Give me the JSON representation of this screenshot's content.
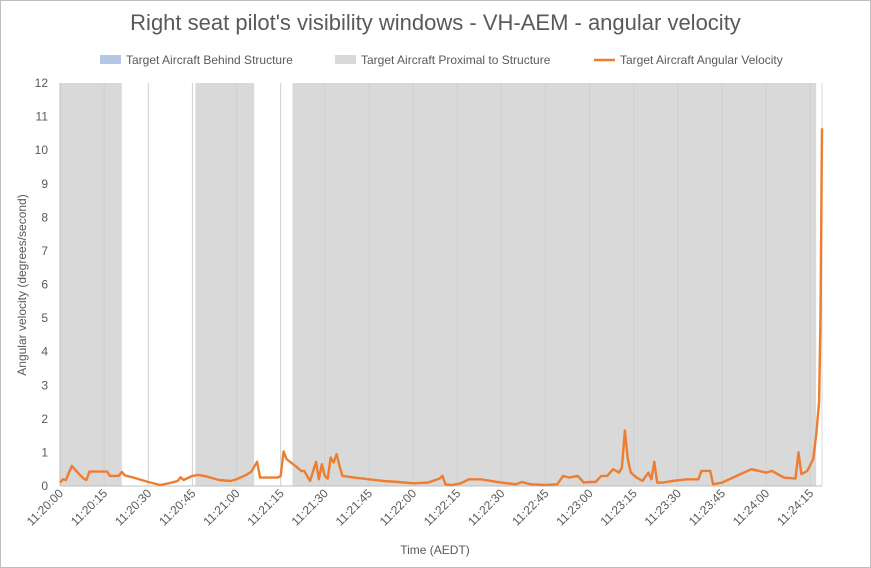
{
  "chart_data": {
    "type": "line",
    "title": "Right seat pilot's visibility windows - VH-AEM - angular velocity",
    "xlabel": "Time (AEDT)",
    "ylabel": "Angular velocity (degrees/second)",
    "ylim": [
      0,
      12
    ],
    "yticks": [
      "0",
      "1",
      "2",
      "3",
      "4",
      "5",
      "6",
      "7",
      "8",
      "9",
      "10",
      "11",
      "12"
    ],
    "xlim": [
      "11:20:00",
      "11:24:19"
    ],
    "xticks": [
      "11:20:00",
      "11:20:15",
      "11:20:30",
      "11:20:45",
      "11:21:00",
      "11:21:15",
      "11:21:30",
      "11:21:45",
      "11:22:00",
      "11:22:15",
      "11:22:30",
      "11:22:45",
      "11:23:00",
      "11:23:15",
      "11:23:30",
      "11:23:45",
      "11:24:00",
      "11:24:15"
    ],
    "grid": "vertical",
    "legend_position": "top",
    "legend": [
      {
        "label": "Target Aircraft Behind Structure",
        "kind": "area",
        "color": "#b4c7e7"
      },
      {
        "label": "Target Aircraft Proximal to Structure",
        "kind": "area",
        "color": "#d9d9d9"
      },
      {
        "label": "Target Aircraft Angular Velocity",
        "kind": "line",
        "color": "#ed7d31"
      }
    ],
    "proximal_intervals": [
      [
        "11:20:00",
        "11:20:21"
      ],
      [
        "11:20:46",
        "11:21:06"
      ],
      [
        "11:21:19",
        "11:24:17"
      ]
    ],
    "behind_intervals": [],
    "series": [
      {
        "name": "Target Aircraft Angular Velocity",
        "color": "#ed7d31",
        "points": [
          [
            "11:20:00",
            0.1
          ],
          [
            "11:20:01",
            0.2
          ],
          [
            "11:20:02",
            0.18
          ],
          [
            "11:20:04",
            0.6
          ],
          [
            "11:20:06",
            0.4
          ],
          [
            "11:20:08",
            0.22
          ],
          [
            "11:20:09",
            0.18
          ],
          [
            "11:20:10",
            0.43
          ],
          [
            "11:20:12",
            0.43
          ],
          [
            "11:20:16",
            0.43
          ],
          [
            "11:20:17",
            0.3
          ],
          [
            "11:20:20",
            0.3
          ],
          [
            "11:20:21",
            0.42
          ],
          [
            "11:20:22",
            0.32
          ],
          [
            "11:20:25",
            0.25
          ],
          [
            "11:20:30",
            0.12
          ],
          [
            "11:20:34",
            0.03
          ],
          [
            "11:20:37",
            0.08
          ],
          [
            "11:20:40",
            0.15
          ],
          [
            "11:20:41",
            0.26
          ],
          [
            "11:20:42",
            0.18
          ],
          [
            "11:20:45",
            0.3
          ],
          [
            "11:20:47",
            0.33
          ],
          [
            "11:20:50",
            0.28
          ],
          [
            "11:20:54",
            0.18
          ],
          [
            "11:20:58",
            0.15
          ],
          [
            "11:21:00",
            0.2
          ],
          [
            "11:21:03",
            0.32
          ],
          [
            "11:21:05",
            0.42
          ],
          [
            "11:21:07",
            0.72
          ],
          [
            "11:21:08",
            0.25
          ],
          [
            "11:21:14",
            0.25
          ],
          [
            "11:21:15",
            0.3
          ],
          [
            "11:21:16",
            1.03
          ],
          [
            "11:21:17",
            0.8
          ],
          [
            "11:21:20",
            0.6
          ],
          [
            "11:21:22",
            0.45
          ],
          [
            "11:21:23",
            0.45
          ],
          [
            "11:21:25",
            0.15
          ],
          [
            "11:21:27",
            0.72
          ],
          [
            "11:21:28",
            0.2
          ],
          [
            "11:21:29",
            0.65
          ],
          [
            "11:21:30",
            0.3
          ],
          [
            "11:21:31",
            0.22
          ],
          [
            "11:21:32",
            0.85
          ],
          [
            "11:21:33",
            0.7
          ],
          [
            "11:21:34",
            0.95
          ],
          [
            "11:21:35",
            0.6
          ],
          [
            "11:21:36",
            0.3
          ],
          [
            "11:21:40",
            0.25
          ],
          [
            "11:21:45",
            0.2
          ],
          [
            "11:21:50",
            0.15
          ],
          [
            "11:21:55",
            0.12
          ],
          [
            "11:22:00",
            0.08
          ],
          [
            "11:22:05",
            0.1
          ],
          [
            "11:22:09",
            0.22
          ],
          [
            "11:22:10",
            0.3
          ],
          [
            "11:22:11",
            0.05
          ],
          [
            "11:22:13",
            0.03
          ],
          [
            "11:22:16",
            0.07
          ],
          [
            "11:22:19",
            0.2
          ],
          [
            "11:22:23",
            0.2
          ],
          [
            "11:22:30",
            0.1
          ],
          [
            "11:22:35",
            0.05
          ],
          [
            "11:22:37",
            0.12
          ],
          [
            "11:22:40",
            0.05
          ],
          [
            "11:22:45",
            0.03
          ],
          [
            "11:22:49",
            0.05
          ],
          [
            "11:22:51",
            0.3
          ],
          [
            "11:22:53",
            0.25
          ],
          [
            "11:22:56",
            0.3
          ],
          [
            "11:22:58",
            0.1
          ],
          [
            "11:23:00",
            0.12
          ],
          [
            "11:23:02",
            0.12
          ],
          [
            "11:23:04",
            0.3
          ],
          [
            "11:23:06",
            0.3
          ],
          [
            "11:23:08",
            0.5
          ],
          [
            "11:23:10",
            0.4
          ],
          [
            "11:23:11",
            0.55
          ],
          [
            "11:23:12",
            1.65
          ],
          [
            "11:23:13",
            0.8
          ],
          [
            "11:23:14",
            0.4
          ],
          [
            "11:23:16",
            0.25
          ],
          [
            "11:23:18",
            0.15
          ],
          [
            "11:23:20",
            0.4
          ],
          [
            "11:23:21",
            0.2
          ],
          [
            "11:23:22",
            0.72
          ],
          [
            "11:23:23",
            0.1
          ],
          [
            "11:23:25",
            0.1
          ],
          [
            "11:23:28",
            0.15
          ],
          [
            "11:23:33",
            0.2
          ],
          [
            "11:23:37",
            0.2
          ],
          [
            "11:23:38",
            0.45
          ],
          [
            "11:23:41",
            0.45
          ],
          [
            "11:23:42",
            0.05
          ],
          [
            "11:23:45",
            0.1
          ],
          [
            "11:23:50",
            0.3
          ],
          [
            "11:23:55",
            0.5
          ],
          [
            "11:24:00",
            0.4
          ],
          [
            "11:24:02",
            0.45
          ],
          [
            "11:24:06",
            0.25
          ],
          [
            "11:24:10",
            0.22
          ],
          [
            "11:24:11",
            1.0
          ],
          [
            "11:24:12",
            0.35
          ],
          [
            "11:24:14",
            0.45
          ],
          [
            "11:24:16",
            0.8
          ],
          [
            "11:24:17",
            1.5
          ],
          [
            "11:24:18",
            2.5
          ],
          [
            "11:24:18.5",
            5.0
          ],
          [
            "11:24:19",
            10.65
          ]
        ]
      }
    ]
  }
}
